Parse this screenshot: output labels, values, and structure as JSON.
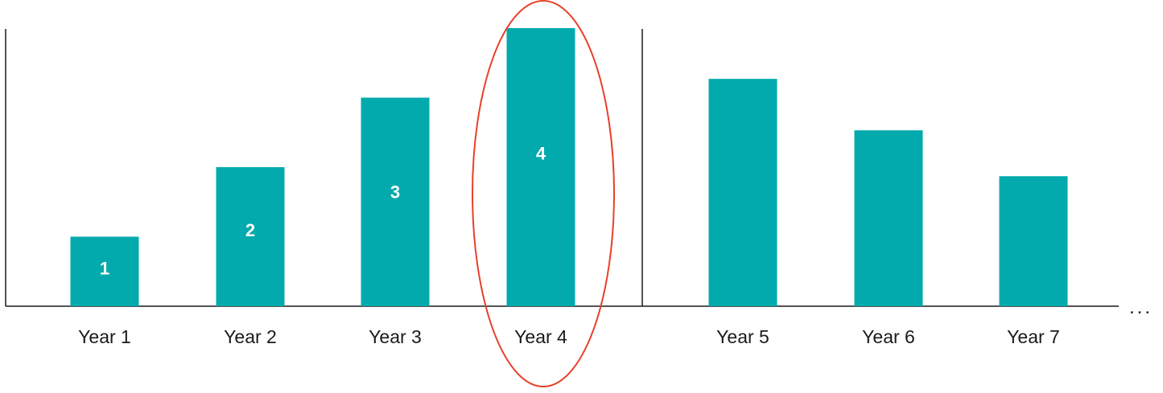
{
  "chart_data": {
    "type": "bar",
    "title": "",
    "xlabel": "",
    "ylabel": "",
    "categories": [
      "Year 1",
      "Year 2",
      "Year 3",
      "Year 4",
      "Year 5",
      "Year 6",
      "Year 7"
    ],
    "values": [
      1,
      2,
      3,
      4,
      3.27,
      2.53,
      1.87
    ],
    "data_labels": [
      "1",
      "2",
      "3",
      "4",
      "",
      "",
      ""
    ],
    "ylim": [
      0,
      4
    ],
    "grid": false,
    "legend": "none",
    "highlight": {
      "category": "Year 4",
      "shape": "ellipse",
      "color": "#e8402a"
    },
    "divider_after_category": "Year 4",
    "continuation_marker": "..."
  },
  "colors": {
    "bar": "#03aaad",
    "axis": "#1a1a1a",
    "highlight": "#e8402a",
    "bar_label": "#ffffff"
  }
}
